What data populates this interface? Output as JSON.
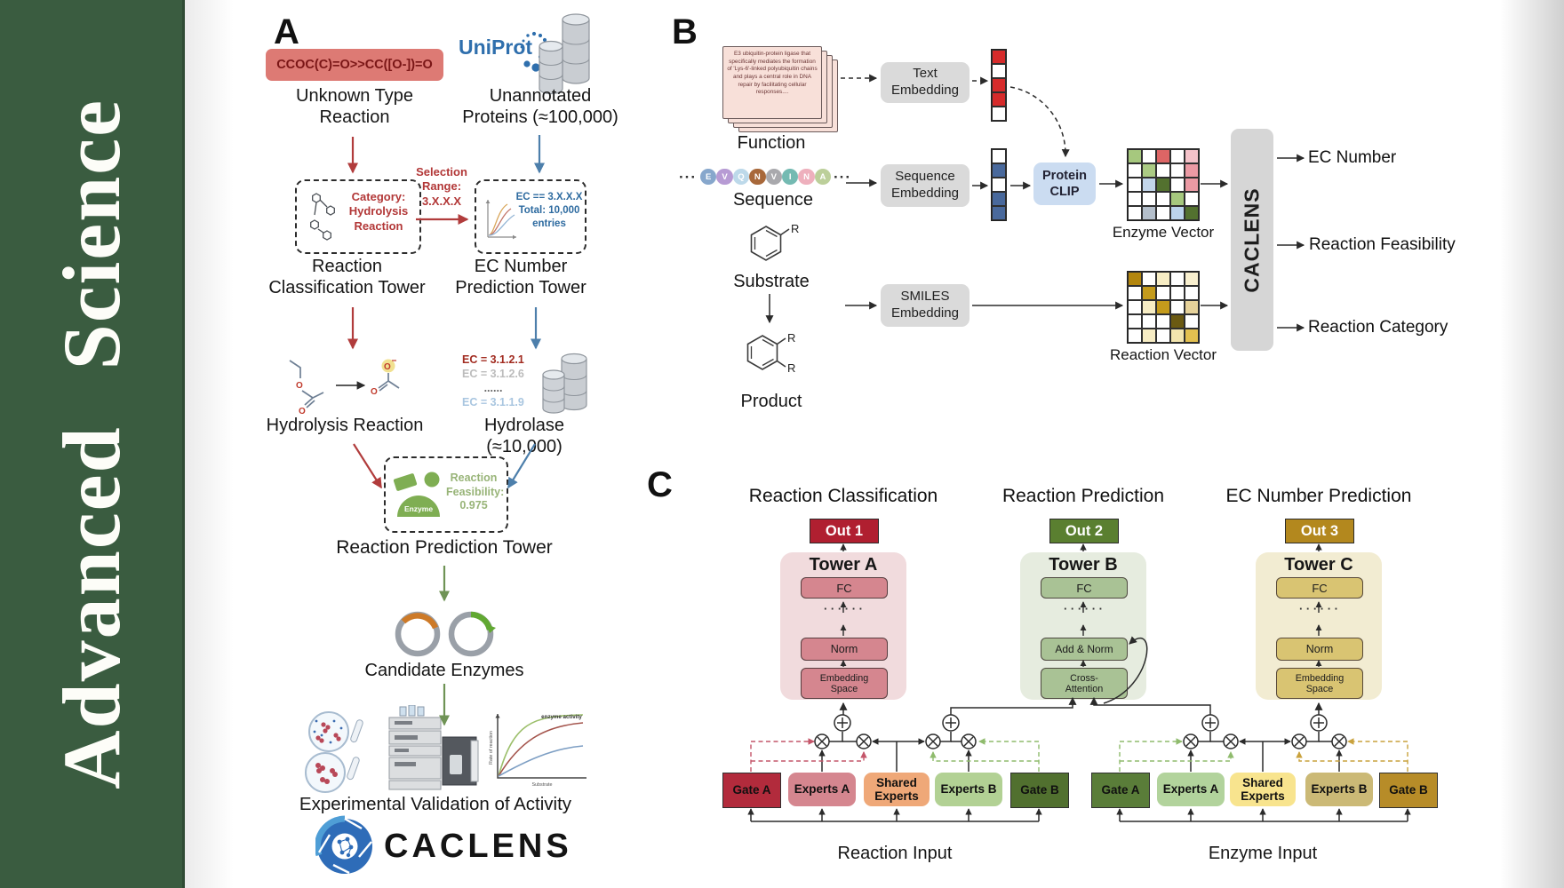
{
  "sidebar": {
    "journal": "Advanced  Science",
    "bg_color": "#3a5c40"
  },
  "panelA": {
    "label": "A",
    "smiles": "CCOC(C)=O>>CC([O-])=O",
    "unknown_reaction": "Unknown Type\nReaction",
    "uniprot": "UniProt",
    "unannotated": "Unannotated\nProteins (≈100,000)",
    "selection_range": "Selection\nRange:\n3.X.X.X",
    "category_box": "Category:\nHydrolysis\nReaction",
    "ec_filter_box": "EC == 3.X.X.X\nTotal: 10,000\nentries",
    "classification_tower": "Reaction\nClassification Tower",
    "ec_tower": "EC Number\nPrediction Tower",
    "hydrolysis": "Hydrolysis Reaction",
    "ec_list": [
      "EC = 3.1.2.1",
      "EC = 3.1.2.6",
      "......",
      "EC = 3.1.1.9"
    ],
    "hydrolase": "Hydrolase (≈10,000)",
    "enzyme": "Enzyme",
    "feasibility": "Reaction\nFeasibility:\n0.975",
    "prediction_tower": "Reaction Prediction Tower",
    "candidates": "Candidate Enzymes",
    "graph": {
      "curve_label": "enzyme activity",
      "ylabel": "Rate of reaction",
      "xlabel": "Substrate"
    },
    "validation": "Experimental Validation of Activity",
    "logo": "CACLENS",
    "colors": {
      "arrow_red": "#b13c3c",
      "arrow_blue": "#4d7fab",
      "arrow_green": "#6f9355",
      "smiles_bg": "#dd7a74",
      "uniprot_blue": "#2f6fad",
      "enzyme_green": "#7fae53"
    }
  },
  "panelB": {
    "label": "B",
    "function_card": "E3 ubiquitin-protein ligase that specifically mediates the formation of 'Lys-6'-linked polyubiquitin chains and plays a central role in DNA repair by facilitating cellular responses....",
    "function": "Function",
    "ellipsis": "···",
    "residues": [
      {
        "letter": "E",
        "color": "#87a7cc"
      },
      {
        "letter": "V",
        "color": "#b79bd4"
      },
      {
        "letter": "Q",
        "color": "#bdd9ea"
      },
      {
        "letter": "N",
        "color": "#a8683a"
      },
      {
        "letter": "V",
        "color": "#a9a9ad"
      },
      {
        "letter": "I",
        "color": "#74bab2"
      },
      {
        "letter": "N",
        "color": "#eeb0bd"
      },
      {
        "letter": "A",
        "color": "#bccf9a"
      }
    ],
    "sequence": "Sequence",
    "substituent": "R",
    "substrate": "Substrate",
    "product": "Product",
    "text_embedding": "Text\nEmbedding",
    "sequence_embedding": "Sequence\nEmbedding",
    "smiles_embedding": "SMILES\nEmbedding",
    "protein_clip": "Protein\nCLIP",
    "text_vector": [
      "#d62b2b",
      "#ffffff",
      "#d62b2b",
      "#d62b2b",
      "#ffffff"
    ],
    "sequence_vector": [
      "#ffffff",
      "#49699c",
      "#ffffff",
      "#49699c",
      "#49699c"
    ],
    "enzyme_vector_label": "Enzyme Vector",
    "reaction_vector_label": "Reaction Vector",
    "enzyme_matrix": [
      [
        "#a6c87e",
        "#ffffff",
        "#dd6565",
        "#ffffff",
        "#f4c2c9"
      ],
      [
        "#ffffff",
        "#abcb84",
        "#ffffff",
        "#ffffff",
        "#ec9aa4"
      ],
      [
        "#ffffff",
        "#c3d6ea",
        "#53712f",
        "#ffffff",
        "#ec9aa4"
      ],
      [
        "#ffffff",
        "#ffffff",
        "#ffffff",
        "#a6c87e",
        "#ffffff"
      ],
      [
        "#ffffff",
        "#b4bfcb",
        "#ffffff",
        "#bcd4ec",
        "#53712f"
      ]
    ],
    "reaction_matrix": [
      [
        "#b3860e",
        "#ffffff",
        "#f7edc4",
        "#ffffff",
        "#f9f0cf"
      ],
      [
        "#ffffff",
        "#c49b1c",
        "#ffffff",
        "#ffffff",
        "#ffffff"
      ],
      [
        "#ffffff",
        "#f7edc4",
        "#c49b1c",
        "#ffffff",
        "#e6d29a"
      ],
      [
        "#ffffff",
        "#ffffff",
        "#ffffff",
        "#6b5a12",
        "#ffffff"
      ],
      [
        "#ffffff",
        "#f7edc4",
        "#ffffff",
        "#f3e5ae",
        "#e3c050"
      ]
    ],
    "model_bar": "CACLENS",
    "outputs": [
      "EC Number",
      "Reaction Feasibility",
      "Reaction Category"
    ]
  },
  "panelC": {
    "label": "C",
    "headers": [
      "Reaction Classification",
      "Reaction Prediction",
      "EC Number Prediction"
    ],
    "outs": [
      "Out 1",
      "Out 2",
      "Out 3"
    ],
    "dots": "· · · · · ·",
    "towers": [
      {
        "name": "Tower A",
        "fc": "FC",
        "mid": "Norm",
        "bottom": "Embedding\nSpace"
      },
      {
        "name": "Tower B",
        "fc": "FC",
        "mid": "Add & Norm",
        "bottom": "Cross-\nAttention"
      },
      {
        "name": "Tower C",
        "fc": "FC",
        "mid": "Norm",
        "bottom": "Embedding\nSpace"
      }
    ],
    "groups": [
      {
        "gate_a": "Gate A",
        "experts_a": "Experts A",
        "shared": "Shared\nExperts",
        "experts_b": "Experts B",
        "gate_b": "Gate B",
        "input": "Reaction Input"
      },
      {
        "gate_a": "Gate A",
        "experts_a": "Experts A",
        "shared": "Shared\nExperts",
        "experts_b": "Experts B",
        "gate_b": "Gate B",
        "input": "Enzyme Input"
      }
    ],
    "colors": {
      "out1": "#b01f30",
      "out2": "#5a7f30",
      "out3": "#b3881e",
      "towerA_bg": "#f1dbdd",
      "towerA_box": "#d5868f",
      "towerB_bg": "#e6ecdf",
      "towerB_box": "#a9c295",
      "towerC_bg": "#f2ecd2",
      "towerC_box": "#d9c472",
      "reaction_group": {
        "gate_a": "#b22b3c",
        "experts_a": "#d5868f",
        "shared": "#efa878",
        "experts_b": "#b2d194",
        "gate_b": "#51702f"
      },
      "enzyme_group": {
        "gate_a": "#5a7d39",
        "experts_a": "#b2d39c",
        "shared": "#f8e48e",
        "experts_b": "#cbb976",
        "gate_b": "#b78c28"
      },
      "gate_dash_red": "#c4566a",
      "gate_dash_green": "#8fbb6d",
      "gate_dash_gold": "#c9a23d"
    }
  }
}
